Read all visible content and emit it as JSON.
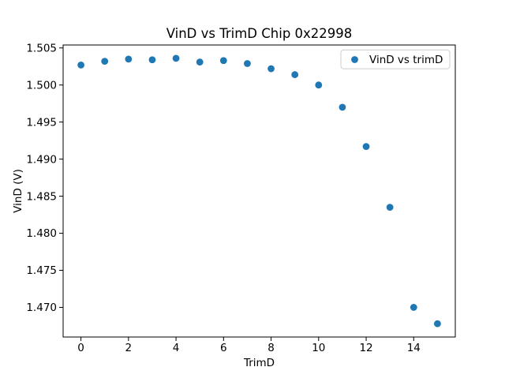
{
  "figure": {
    "background": "#ffffff",
    "text_color": "#000000",
    "spine_color": "#000000"
  },
  "chart_data": {
    "type": "scatter",
    "title": "VinD vs TrimD Chip 0x22998",
    "xlabel": "TrimD",
    "ylabel": "VinD (V)",
    "x": [
      0,
      1,
      2,
      3,
      4,
      5,
      6,
      7,
      8,
      9,
      10,
      11,
      12,
      13,
      14,
      15
    ],
    "y": [
      1.5027,
      1.5032,
      1.5035,
      1.5034,
      1.5036,
      1.5031,
      1.5033,
      1.5029,
      1.5022,
      1.5014,
      1.5,
      1.497,
      1.4917,
      1.4835,
      1.47,
      1.4678
    ],
    "series": [
      {
        "name": "VinD vs trimD",
        "marker": "circle",
        "color": "#1f77b4"
      }
    ],
    "marker_color": "#1f77b4",
    "xlim": [
      -0.75,
      15.75
    ],
    "ylim": [
      1.466,
      1.5054
    ],
    "xticks": [
      0,
      2,
      4,
      6,
      8,
      10,
      12,
      14
    ],
    "xtick_labels": [
      "0",
      "2",
      "4",
      "6",
      "8",
      "10",
      "12",
      "14"
    ],
    "yticks": [
      1.47,
      1.475,
      1.48,
      1.485,
      1.49,
      1.495,
      1.5,
      1.505
    ],
    "ytick_labels": [
      "1.470",
      "1.475",
      "1.480",
      "1.485",
      "1.490",
      "1.495",
      "1.500",
      "1.505"
    ],
    "grid": false,
    "legend": {
      "label": "VinD vs trimD",
      "position": "upper right"
    }
  }
}
